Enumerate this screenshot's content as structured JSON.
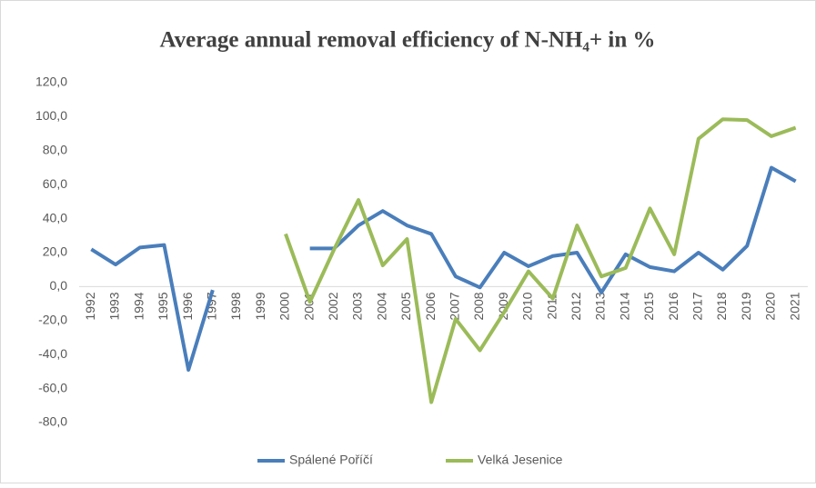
{
  "chart_data": {
    "type": "line",
    "title": "Average annual removal efficiency of N-NH₄+ in %",
    "categories": [
      "1992",
      "1993",
      "1994",
      "1995",
      "1996",
      "1997",
      "1998",
      "1999",
      "2000",
      "2001",
      "2002",
      "2003",
      "2004",
      "2005",
      "2006",
      "2007",
      "2008",
      "2009",
      "2010",
      "2011",
      "2012",
      "2013",
      "2014",
      "2015",
      "2016",
      "2017",
      "2018",
      "2019",
      "2020",
      "2021"
    ],
    "series": [
      {
        "name": "Spálené Poříčí",
        "color": "#4a7ebb",
        "values": [
          22,
          13,
          23,
          24.5,
          -49,
          -2,
          null,
          null,
          null,
          22.5,
          22.5,
          36,
          44.5,
          36,
          31,
          6,
          -0.5,
          20,
          12,
          18,
          20,
          -3.5,
          19,
          11.5,
          9,
          20,
          10,
          24,
          70,
          62
        ]
      },
      {
        "name": "Velká Jesenice",
        "color": "#9bbb59",
        "values": [
          null,
          null,
          null,
          null,
          null,
          null,
          null,
          null,
          31,
          -9,
          22,
          51,
          12.5,
          28,
          -68,
          -19,
          -37.5,
          -15,
          9,
          -7,
          36,
          6,
          11,
          46,
          19,
          87,
          98.5,
          98,
          88.5,
          93.5
        ]
      }
    ],
    "ylim": [
      -80,
      120
    ],
    "yticks": [
      {
        "value": -80,
        "label": "-80,0"
      },
      {
        "value": -60,
        "label": "-60,0"
      },
      {
        "value": -40,
        "label": "-40,0"
      },
      {
        "value": -20,
        "label": "-20,0"
      },
      {
        "value": 0,
        "label": "0,0"
      },
      {
        "value": 20,
        "label": "20,0"
      },
      {
        "value": 40,
        "label": "40,0"
      },
      {
        "value": 60,
        "label": "60,0"
      },
      {
        "value": 80,
        "label": "80,0"
      },
      {
        "value": 100,
        "label": "100,0"
      },
      {
        "value": 120,
        "label": "120,0"
      }
    ],
    "grid": false,
    "legend": "bottom"
  }
}
